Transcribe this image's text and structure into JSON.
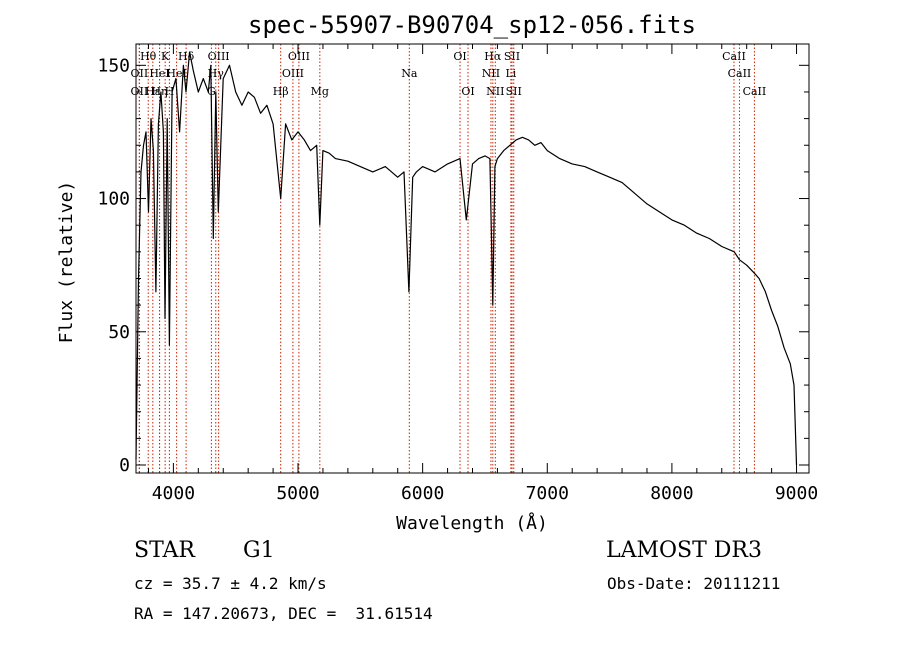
{
  "chart_data": {
    "type": "line",
    "title": "spec-55907-B90704_sp12-056.fits",
    "xlabel": "Wavelength (Å)",
    "ylabel": "Flux (relative)",
    "xlim": [
      3700,
      9100
    ],
    "ylim": [
      -3,
      158
    ],
    "x_ticks": [
      4000,
      5000,
      6000,
      7000,
      8000,
      9000
    ],
    "y_ticks": [
      0,
      50,
      100,
      150
    ],
    "grid": false,
    "series": [
      {
        "x": [
          3700,
          3720,
          3740,
          3760,
          3780,
          3800,
          3820,
          3840,
          3860,
          3880,
          3900,
          3920,
          3933,
          3950,
          3968,
          3990,
          4020,
          4050,
          4080,
          4101,
          4130,
          4160,
          4200,
          4240,
          4280,
          4300,
          4320,
          4340,
          4360,
          4400,
          4450,
          4500,
          4550,
          4600,
          4650,
          4700,
          4750,
          4800,
          4861,
          4900,
          4950,
          5000,
          5050,
          5100,
          5150,
          5175,
          5200,
          5250,
          5300,
          5400,
          5500,
          5600,
          5700,
          5800,
          5850,
          5890,
          5920,
          5950,
          6000,
          6100,
          6200,
          6300,
          6350,
          6400,
          6450,
          6500,
          6540,
          6563,
          6580,
          6600,
          6650,
          6700,
          6750,
          6800,
          6850,
          6900,
          6950,
          7000,
          7100,
          7200,
          7300,
          7400,
          7500,
          7600,
          7700,
          7800,
          7900,
          8000,
          8100,
          8200,
          8300,
          8400,
          8500,
          8542,
          8600,
          8662,
          8700,
          8750,
          8800,
          8850,
          8900,
          8950,
          8980,
          9000
        ],
        "y": [
          2,
          70,
          110,
          120,
          125,
          95,
          130,
          118,
          65,
          128,
          140,
          125,
          55,
          130,
          45,
          140,
          145,
          125,
          150,
          140,
          155,
          148,
          140,
          145,
          140,
          150,
          85,
          140,
          95,
          145,
          150,
          140,
          135,
          140,
          138,
          132,
          135,
          128,
          100,
          128,
          122,
          125,
          122,
          118,
          120,
          90,
          118,
          117,
          115,
          114,
          112,
          110,
          112,
          108,
          110,
          65,
          108,
          110,
          112,
          110,
          113,
          115,
          92,
          113,
          115,
          116,
          115,
          60,
          112,
          115,
          118,
          120,
          122,
          123,
          122,
          120,
          121,
          118,
          115,
          113,
          112,
          110,
          108,
          106,
          102,
          98,
          95,
          92,
          90,
          87,
          85,
          82,
          80,
          77,
          75,
          72,
          70,
          65,
          58,
          52,
          44,
          38,
          30,
          0
        ]
      }
    ],
    "line_markers": [
      {
        "label": "Hθ",
        "x": 3798,
        "row": 1
      },
      {
        "label": "OII",
        "x": 3727,
        "row": 2
      },
      {
        "label": "OII",
        "x": 3727,
        "row": 3
      },
      {
        "label": "Hε",
        "x": 3835,
        "row": 3
      },
      {
        "label": "Hη",
        "x": 3889,
        "row": 3
      },
      {
        "label": "HeI",
        "x": 3889,
        "row": 2
      },
      {
        "label": "K",
        "x": 3934,
        "row": 1
      },
      {
        "label": "H",
        "x": 3968,
        "row": 3
      },
      {
        "label": "Hδ",
        "x": 4102,
        "row": 1
      },
      {
        "label": "HeI",
        "x": 4026,
        "row": 2
      },
      {
        "label": "OIII",
        "x": 4363,
        "row": 1
      },
      {
        "label": "Hγ",
        "x": 4340,
        "row": 2
      },
      {
        "label": "G",
        "x": 4305,
        "row": 3
      },
      {
        "label": "Hβ",
        "x": 4861,
        "row": 3
      },
      {
        "label": "OIII",
        "x": 5007,
        "row": 1
      },
      {
        "label": "OIII",
        "x": 4959,
        "row": 2
      },
      {
        "label": "Mg",
        "x": 5175,
        "row": 3
      },
      {
        "label": "Na",
        "x": 5893,
        "row": 2
      },
      {
        "label": "OI",
        "x": 6300,
        "row": 1
      },
      {
        "label": "OI",
        "x": 6364,
        "row": 3
      },
      {
        "label": "Hα",
        "x": 6563,
        "row": 1
      },
      {
        "label": "NII",
        "x": 6548,
        "row": 2
      },
      {
        "label": "NII",
        "x": 6583,
        "row": 3
      },
      {
        "label": "SII",
        "x": 6717,
        "row": 1
      },
      {
        "label": "Li",
        "x": 6708,
        "row": 2
      },
      {
        "label": "SII",
        "x": 6731,
        "row": 3
      },
      {
        "label": "CaII",
        "x": 8498,
        "row": 1
      },
      {
        "label": "CaII",
        "x": 8542,
        "row": 2
      },
      {
        "label": "CaII",
        "x": 8662,
        "row": 3
      }
    ]
  },
  "info": {
    "object_class": "STAR",
    "subclass": "G1",
    "survey": "LAMOST DR3",
    "cz": "cz = 35.7 ± 4.2 km/s",
    "obs_date": "Obs-Date: 20111211",
    "coords": "RA = 147.20673, DEC =  31.61514"
  },
  "colors": {
    "marker_line": "#cc2200",
    "spectrum": "#000000",
    "axis": "#000000"
  }
}
